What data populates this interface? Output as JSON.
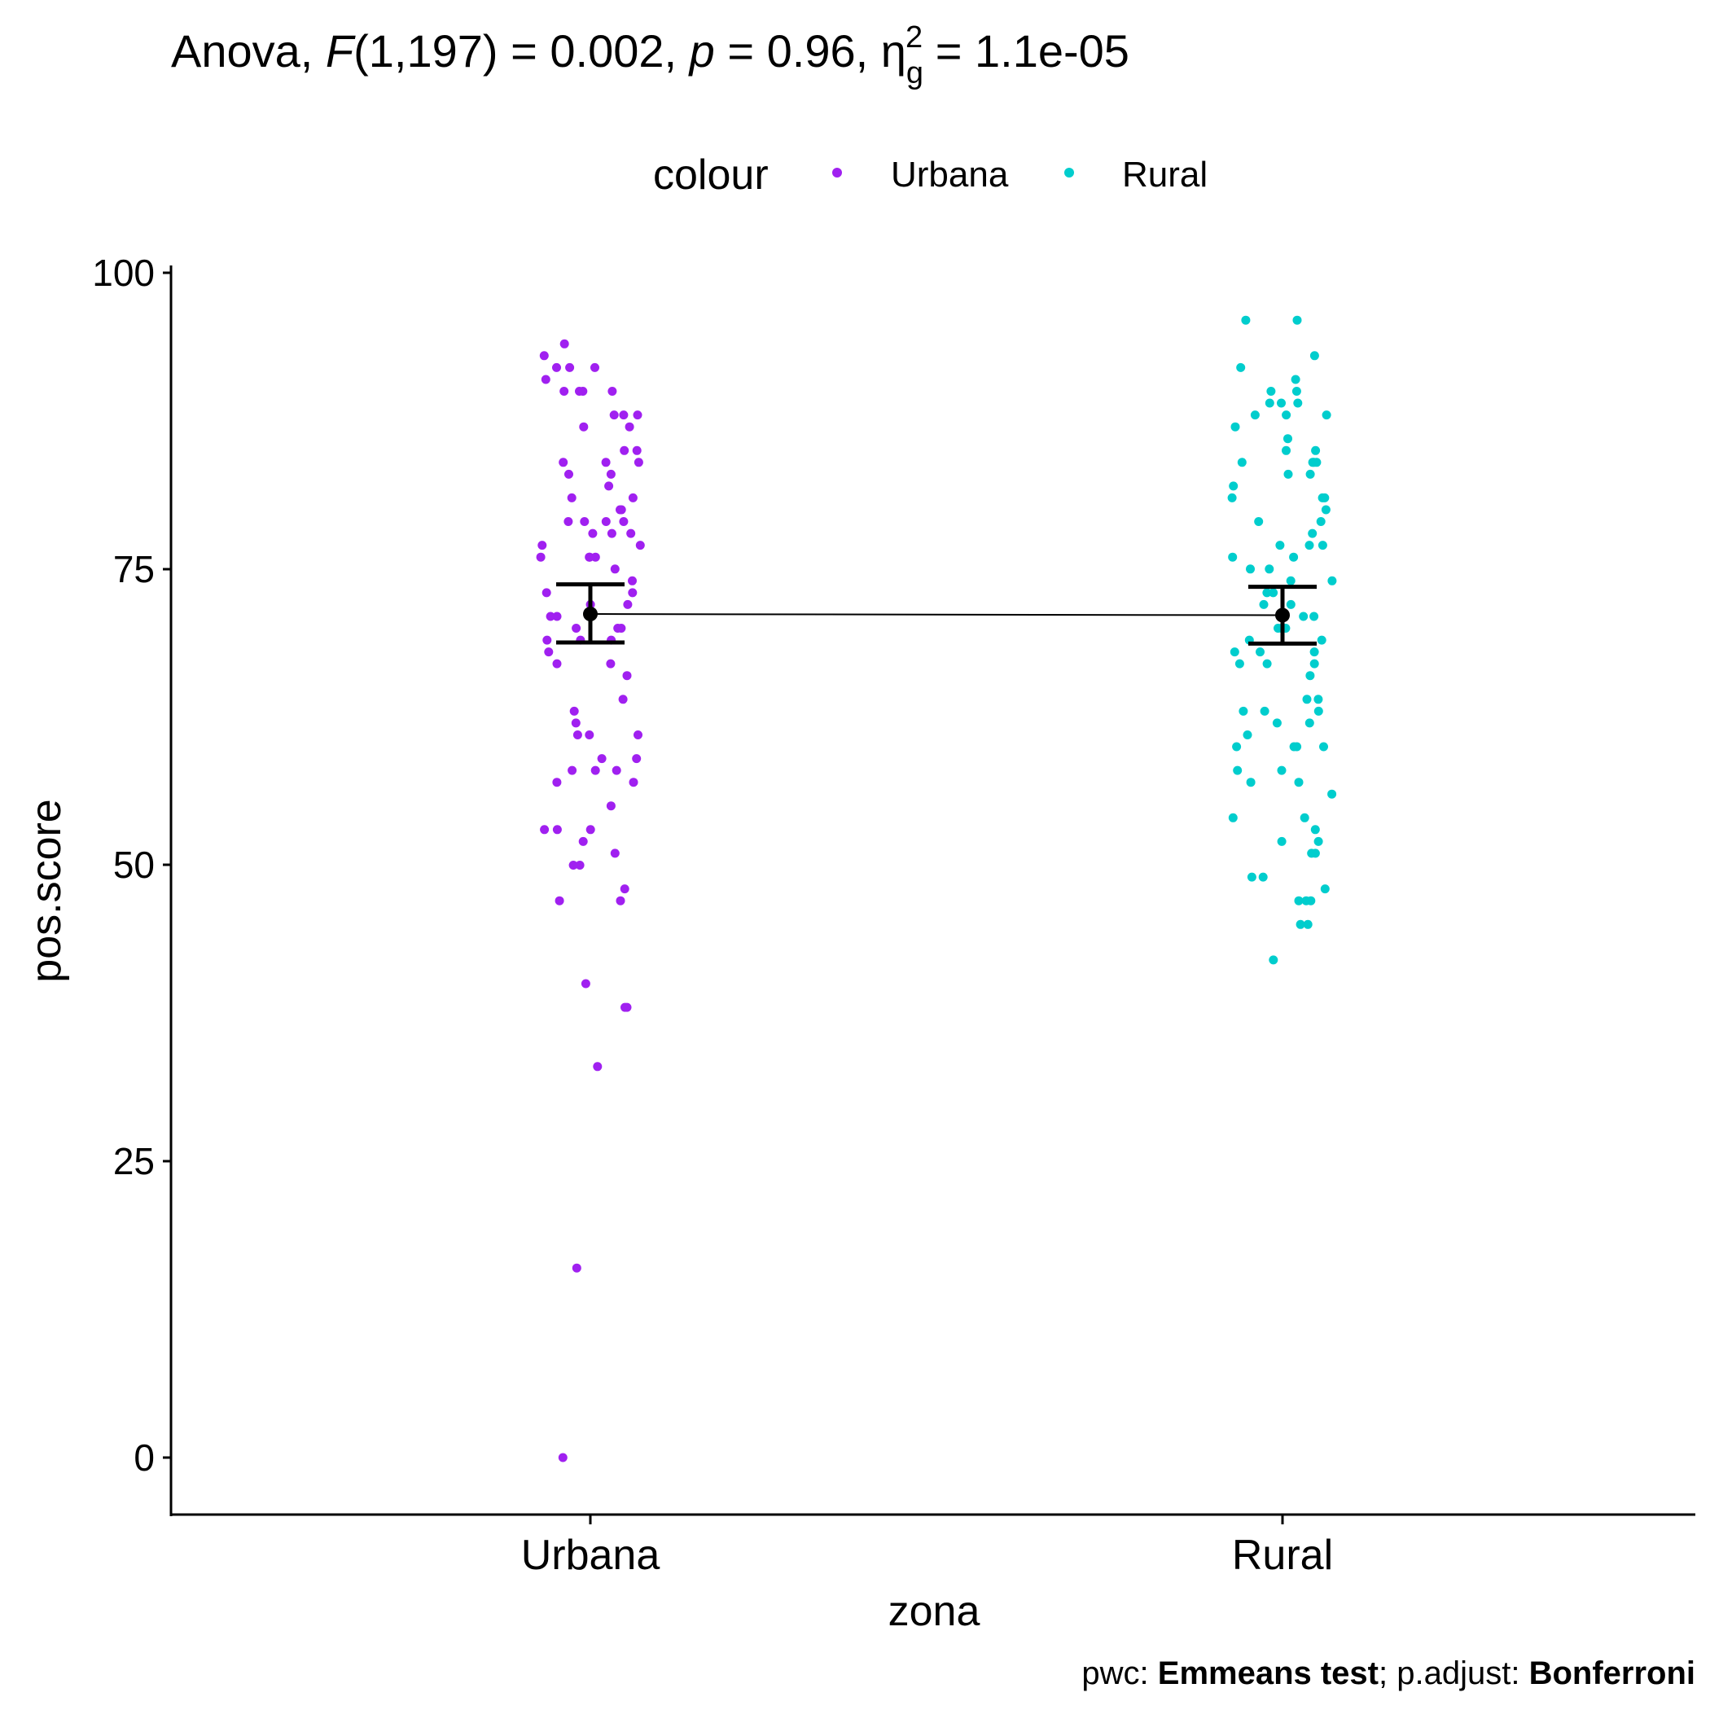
{
  "chart_data": {
    "type": "scatter",
    "title": {
      "prefix": "Anova, ",
      "f_symbol": "F",
      "f_args": "(1,197) = 0.002, ",
      "p_symbol": "p",
      "p_value": " = 0.96, ",
      "eta_symbol": "η",
      "eta_sub": "g",
      "eta_sup": "2",
      "eta_value": " = 1.1e-05"
    },
    "legend": {
      "title": "colour",
      "position": "top",
      "entries": [
        {
          "label": "Urbana",
          "color": "#A020F0"
        },
        {
          "label": "Rural",
          "color": "#00CDCD"
        }
      ]
    },
    "xlabel": "zona",
    "ylabel": "pos.score",
    "categories": [
      "Urbana",
      "Rural"
    ],
    "ylim": [
      -4,
      100
    ],
    "yticks": [
      "0",
      "25",
      "50",
      "75",
      "100"
    ],
    "grid": false,
    "caption": {
      "p1": "pwc: ",
      "b1": "Emmeans test",
      "p2": "; p.adjust: ",
      "b2": "Bonferroni"
    },
    "series": [
      {
        "name": "Urbana",
        "color": "#A020F0",
        "values": [
          94,
          93,
          92,
          92,
          92,
          91,
          90,
          90,
          90,
          90,
          88,
          88,
          88,
          87,
          87,
          85,
          85,
          84,
          84,
          84,
          83,
          83,
          82,
          81,
          81,
          80,
          80,
          79,
          79,
          79,
          79,
          78,
          78,
          78,
          77,
          77,
          76,
          76,
          76,
          76,
          75,
          74,
          73,
          73,
          72,
          72,
          71,
          71,
          71,
          70,
          70,
          70,
          69,
          69,
          69,
          68,
          67,
          67,
          66,
          64,
          63,
          62,
          61,
          61,
          61,
          59,
          59,
          58,
          58,
          58,
          57,
          57,
          55,
          53,
          53,
          53,
          52,
          51,
          50,
          50,
          48,
          47,
          47,
          40,
          38,
          38,
          33,
          16,
          0
        ]
      },
      {
        "name": "Rural",
        "color": "#00CDCD",
        "values": [
          96,
          96,
          93,
          92,
          91,
          90,
          90,
          89,
          89,
          89,
          88,
          88,
          88,
          87,
          86,
          85,
          85,
          84,
          84,
          84,
          84,
          83,
          83,
          82,
          81,
          81,
          81,
          80,
          79,
          79,
          78,
          77,
          77,
          77,
          76,
          76,
          75,
          75,
          74,
          74,
          73,
          73,
          72,
          72,
          71,
          71,
          70,
          70,
          70,
          69,
          69,
          68,
          68,
          68,
          67,
          67,
          67,
          66,
          64,
          64,
          63,
          63,
          63,
          62,
          62,
          61,
          60,
          60,
          60,
          60,
          58,
          58,
          57,
          57,
          56,
          54,
          54,
          53,
          52,
          52,
          51,
          51,
          49,
          49,
          48,
          47,
          47,
          47,
          45,
          45,
          42
        ]
      }
    ],
    "summary": [
      {
        "category": "Urbana",
        "mean": 71.2,
        "lower": 68.8,
        "upper": 73.7
      },
      {
        "category": "Rural",
        "mean": 71.1,
        "lower": 68.7,
        "upper": 73.5
      }
    ]
  }
}
